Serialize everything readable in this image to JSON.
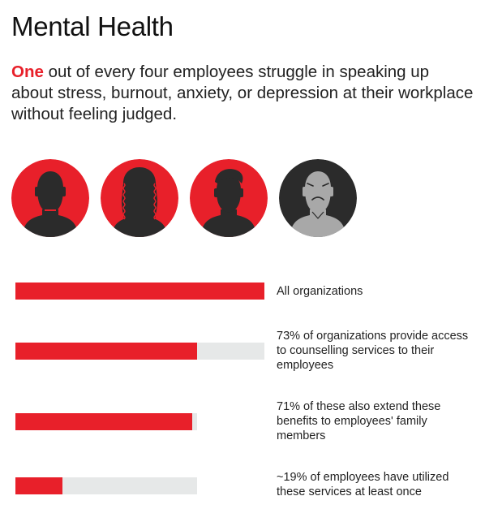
{
  "page": {
    "title": "Mental Health",
    "intro_accent": "One",
    "intro_rest": " out of every four employees struggle in speaking up about stress, burnout, anxiety, or depression at their workplace without feeling judged."
  },
  "colors": {
    "accent": "#e8202a",
    "avatar_dark": "#2b2b2b",
    "avatar_gray": "#a8a8a8",
    "track": "#e6e8e8"
  },
  "avatars": [
    {
      "icon": "person-icon",
      "style": "red"
    },
    {
      "icon": "person-long-hair-icon",
      "style": "red"
    },
    {
      "icon": "person-icon",
      "style": "red"
    },
    {
      "icon": "sad-person-icon",
      "style": "gray"
    }
  ],
  "bars": [
    {
      "label": "All organizations",
      "fill_fraction": 1.0,
      "track_scale": 1.0
    },
    {
      "label": "73% of organizations provide access to counselling services to their employees",
      "fill_fraction": 0.73,
      "track_scale": 1.0
    },
    {
      "label": "71% of these also extend these benefits to employees' family members",
      "fill_fraction": 0.71,
      "track_scale": 0.73
    },
    {
      "label": "~19% of employees have utilized these services at least once",
      "fill_fraction": 0.19,
      "track_scale": 0.73
    }
  ]
}
